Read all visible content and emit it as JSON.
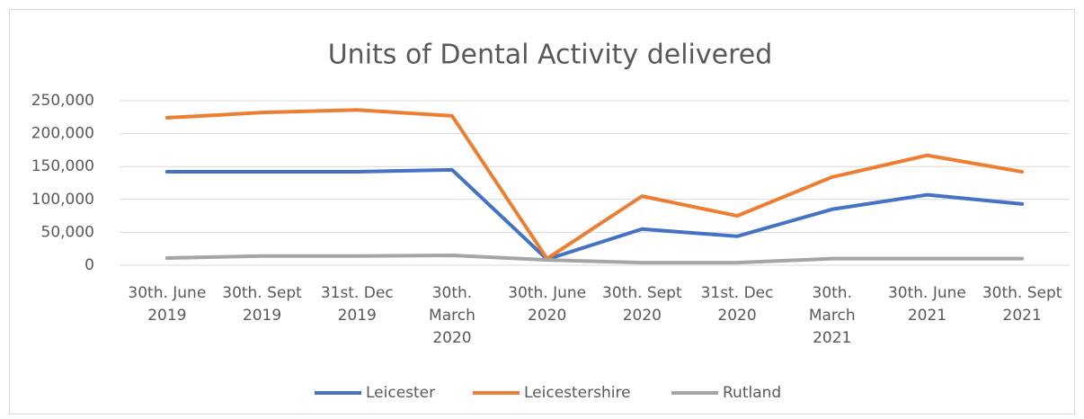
{
  "chart_data": {
    "type": "line",
    "title": "Units of Dental Activity delivered",
    "categories": [
      [
        "30th. June",
        "2019"
      ],
      [
        "30th. Sept",
        "2019"
      ],
      [
        "31st. Dec",
        "2019"
      ],
      [
        "30th.",
        "March",
        "2020"
      ],
      [
        "30th. June",
        "2020"
      ],
      [
        "30th. Sept",
        "2020"
      ],
      [
        "31st. Dec",
        "2020"
      ],
      [
        "30th.",
        "March",
        "2021"
      ],
      [
        "30th. June",
        "2021"
      ],
      [
        "30th. Sept",
        "2021"
      ]
    ],
    "series": [
      {
        "name": "Leicester",
        "color": "#4472c4",
        "values": [
          142000,
          142000,
          142000,
          145000,
          9000,
          55000,
          44000,
          85000,
          107000,
          93000
        ]
      },
      {
        "name": "Leicestershire",
        "color": "#ed7d31",
        "values": [
          224000,
          232000,
          236000,
          227000,
          10000,
          105000,
          75000,
          134000,
          167000,
          142000
        ]
      },
      {
        "name": "Rutland",
        "color": "#a5a5a5",
        "values": [
          11000,
          14000,
          14000,
          15000,
          8000,
          4000,
          4000,
          10000,
          10000,
          10000
        ]
      }
    ],
    "ylim": [
      0,
      250000
    ],
    "yticks": [
      0,
      {
        "value": 50000,
        "label": "50,000"
      },
      {
        "value": 100000,
        "label": "100,000"
      },
      {
        "value": 150000,
        "label": "150,000"
      },
      {
        "value": 200000,
        "label": "200,000"
      },
      {
        "value": 250000,
        "label": "250,000"
      }
    ],
    "grid": true,
    "legend": "bottom"
  }
}
